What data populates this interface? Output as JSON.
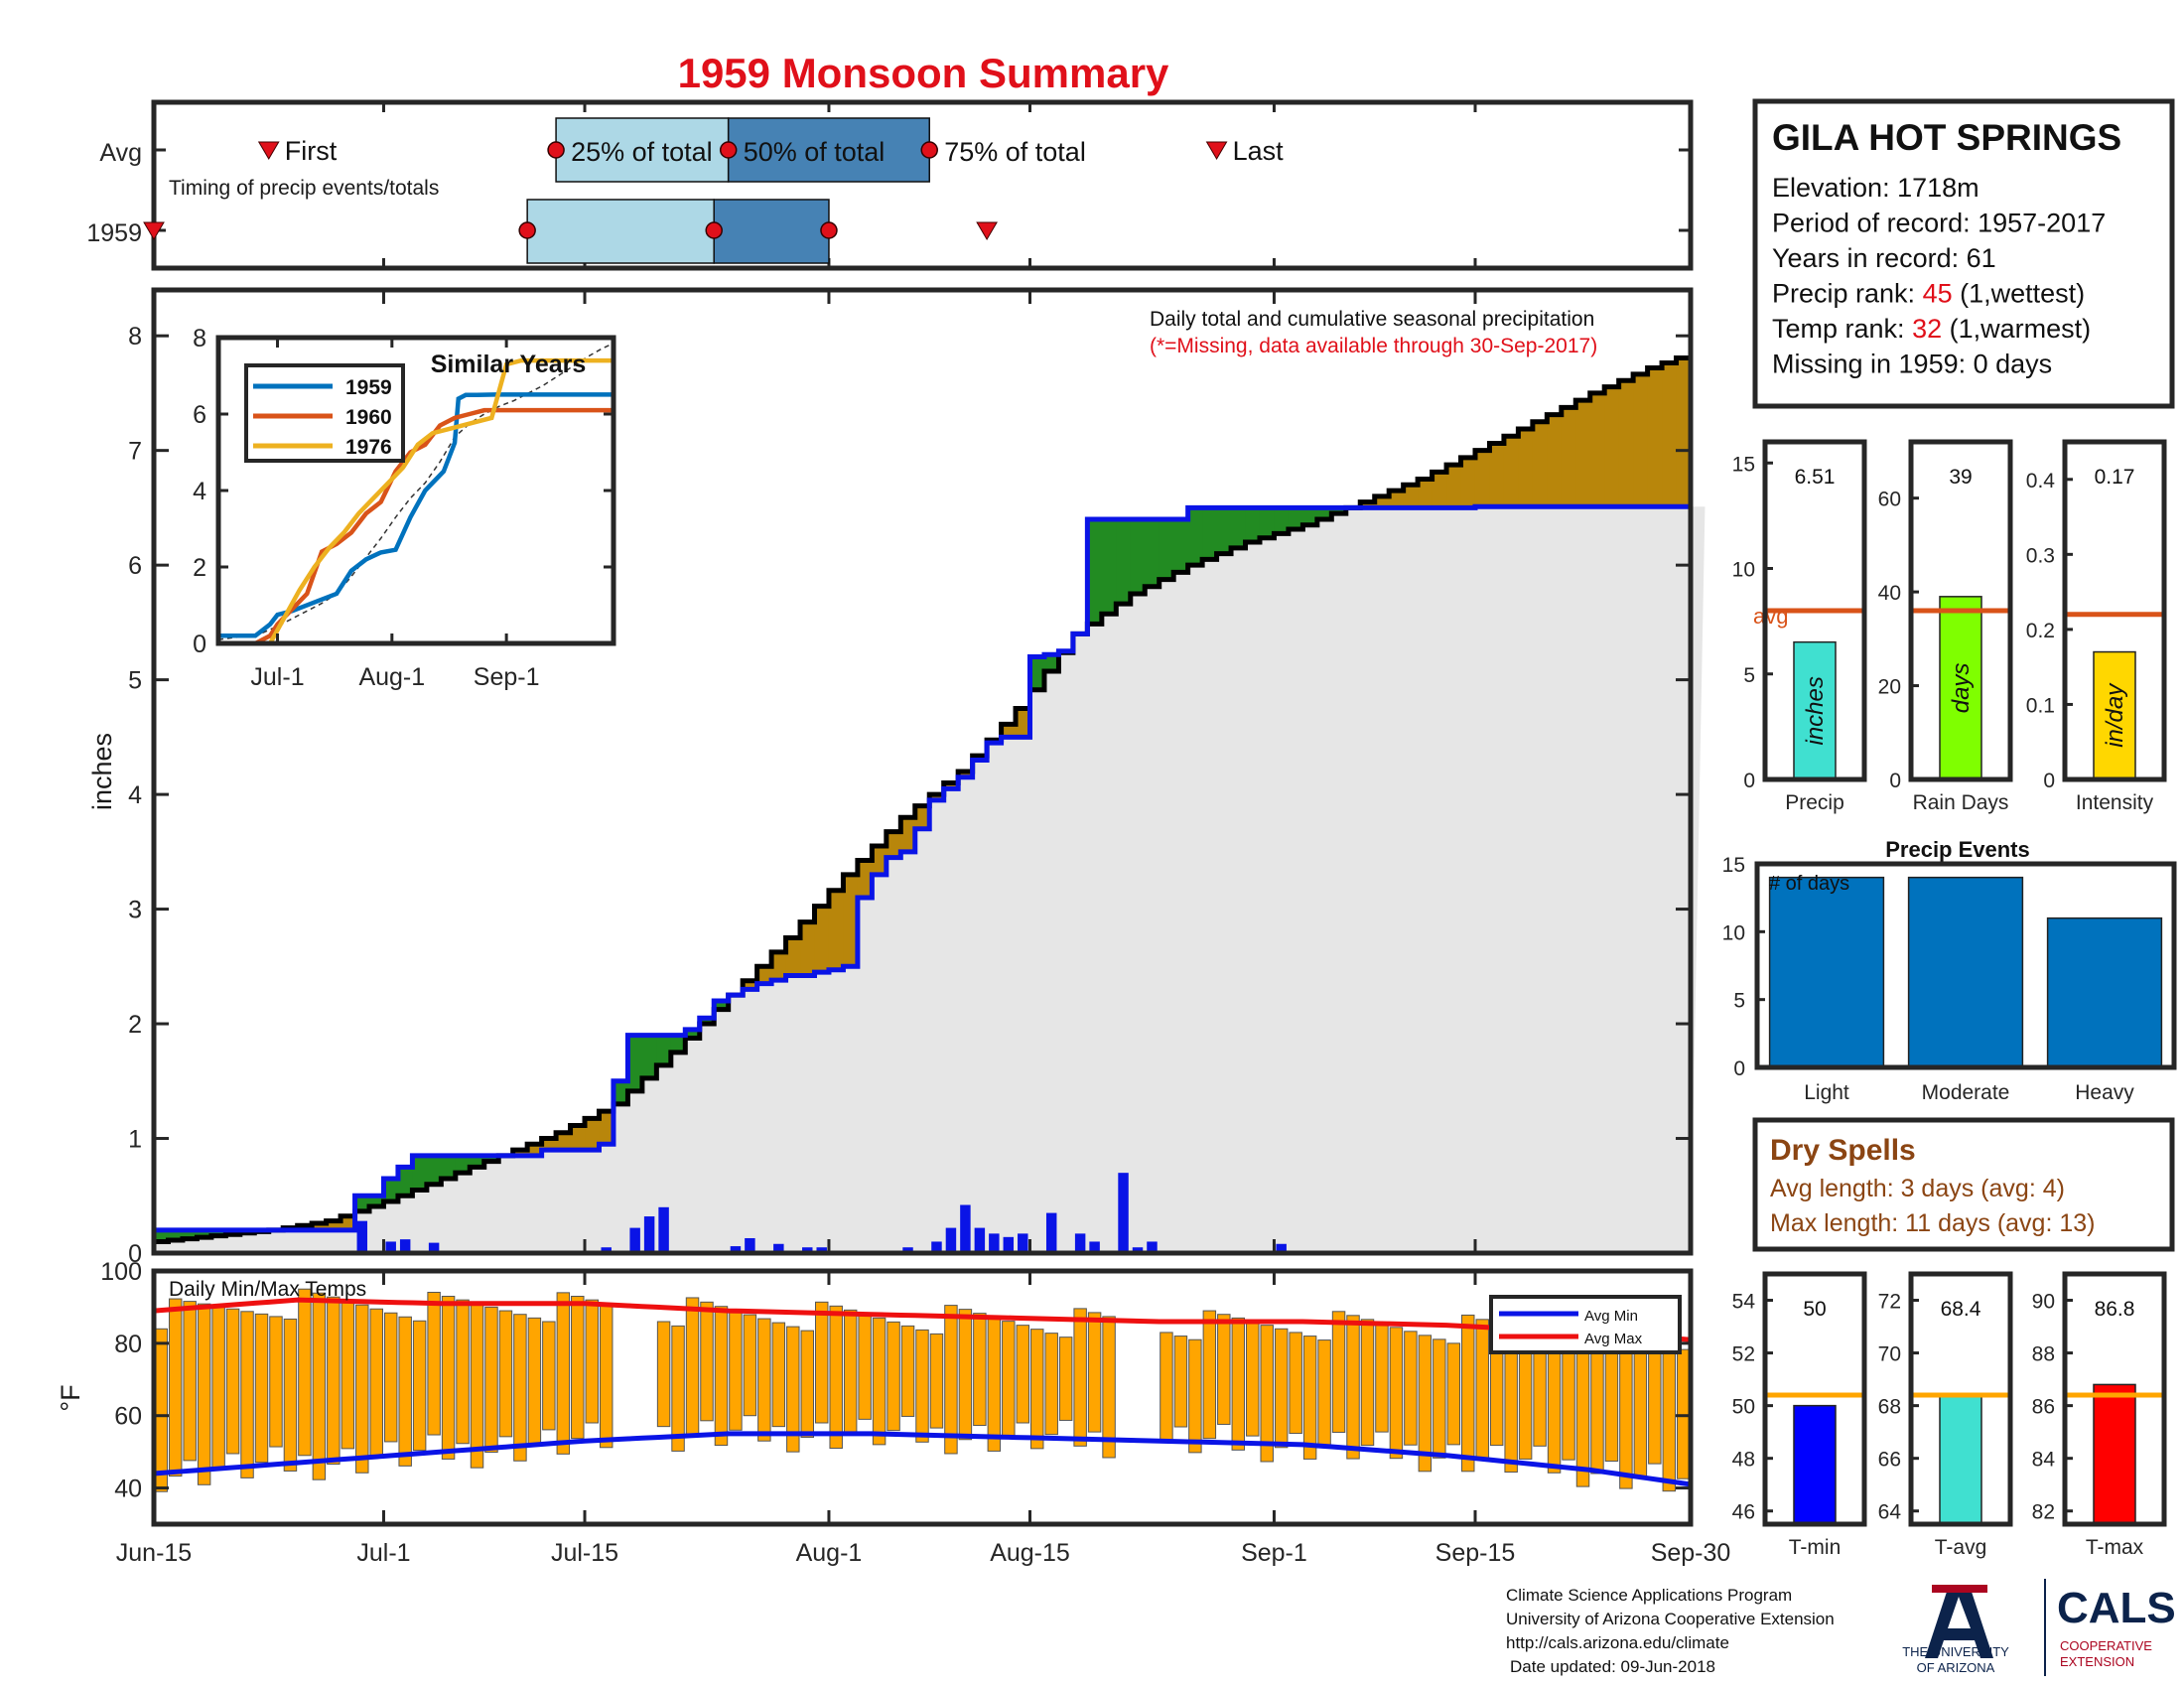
{
  "title": "1959 Monsoon Summary",
  "station": {
    "name": "GILA HOT SPRINGS",
    "lines": [
      {
        "pre": "Elevation: 1718m",
        "red": "",
        "post": ""
      },
      {
        "pre": "Period of record: 1957-2017",
        "red": "",
        "post": ""
      },
      {
        "pre": "Years in record: 61",
        "red": "",
        "post": ""
      },
      {
        "pre": "Precip rank: ",
        "red": "45",
        "post": " (1,wettest)"
      },
      {
        "pre": "Temp rank: ",
        "red": "32",
        "post": " (1,warmest)"
      },
      {
        "pre": "Missing in 1959: 0 days",
        "red": "",
        "post": ""
      }
    ]
  },
  "timing": {
    "row_labels": [
      "Avg",
      "1959"
    ],
    "caption": "Timing of precip events/totals",
    "avg": {
      "first": "First",
      "last": "Last",
      "p25": "25% of total",
      "p50": "50% of total",
      "p75": "75% of total"
    },
    "avg_days": {
      "first": 8,
      "p25": 28,
      "p50": 40,
      "p75": 54,
      "last": 74
    },
    "y1959_days": {
      "first": 0,
      "p25": 26,
      "p50": 39,
      "p75": 47,
      "last": 58
    }
  },
  "main": {
    "caption": "Daily total and cumulative seasonal precipitation",
    "missing_note": "(*=Missing, data available through 30-Sep-2017)",
    "ylabel": "inches",
    "yticks": [
      "0",
      "1",
      "2",
      "3",
      "4",
      "5",
      "6",
      "7",
      "8"
    ],
    "xticks": [
      {
        "label": "Jun-15",
        "day": 0
      },
      {
        "label": "Jul-1",
        "day": 16
      },
      {
        "label": "Jul-15",
        "day": 30
      },
      {
        "label": "Aug-1",
        "day": 47
      },
      {
        "label": "Aug-15",
        "day": 61
      },
      {
        "label": "Sep-1",
        "day": 78
      },
      {
        "label": "Sep-15",
        "day": 92
      },
      {
        "label": "Sep-30",
        "day": 107
      }
    ]
  },
  "inset": {
    "title": "Similar Years",
    "legend": [
      "1959",
      "1960",
      "1976"
    ],
    "yticks": [
      "0",
      "2",
      "4",
      "6",
      "8"
    ],
    "xticks": [
      "Jul-1",
      "Aug-1",
      "Sep-1"
    ]
  },
  "temps": {
    "label": "Daily Min/Max Temps",
    "ylabel": "°F",
    "yticks": [
      "40",
      "60",
      "80",
      "100"
    ],
    "legend": [
      "Avg Min",
      "Avg Max"
    ]
  },
  "stats": {
    "precip": {
      "value_text": "6.51",
      "inner": "inches",
      "avg_label": "avg",
      "xlabel": "Precip",
      "yticks": [
        "0",
        "5",
        "10",
        "15"
      ]
    },
    "raindays": {
      "value_text": "39",
      "inner": "days",
      "xlabel": "Rain Days",
      "yticks": [
        "0",
        "20",
        "40",
        "60"
      ]
    },
    "intensity": {
      "value_text": "0.17",
      "inner": "in/day",
      "xlabel": "Intensity",
      "yticks": [
        "0",
        "0.1",
        "0.2",
        "0.3",
        "0.4"
      ]
    }
  },
  "events": {
    "title": "Precip Events",
    "inner": "# of days",
    "yticks": [
      "0",
      "5",
      "10",
      "15"
    ]
  },
  "dry": {
    "title": "Dry Spells",
    "lines": [
      "Avg length: 3 days (avg: 4)",
      "Max length: 11 days (avg: 13)"
    ]
  },
  "temp_stats": {
    "tmin": {
      "value_text": "50",
      "xlabel": "T-min",
      "yticks": [
        "46",
        "48",
        "50",
        "52",
        "54"
      ]
    },
    "tavg": {
      "value_text": "68.4",
      "xlabel": "T-avg",
      "yticks": [
        "64",
        "66",
        "68",
        "70",
        "72"
      ]
    },
    "tmax": {
      "value_text": "86.8",
      "xlabel": "T-max",
      "yticks": [
        "82",
        "84",
        "86",
        "88",
        "90"
      ]
    }
  },
  "footer": {
    "lines": [
      "Climate Science Applications Program",
      "University of Arizona Cooperative Extension",
      "http://cals.arizona.edu/climate",
      "Date updated: 09-Jun-2018"
    ],
    "logo_ua_line1": "THE UNIVERSITY",
    "logo_ua_line2": "OF ARIZONA",
    "logo_cals": "CALS",
    "logo_coop1": "COOPERATIVE",
    "logo_coop2": "EXTENSION"
  },
  "colors": {
    "title_red": "#e0101a",
    "blue_line": "#0a14e6",
    "surplus_green": "#228b22",
    "deficit_brown": "#b8860b",
    "avg_black": "#000000",
    "bar_orange": "#ffa500",
    "avg_line_orange": "#d95319",
    "dry_brown": "#8b4513",
    "event_blue": "#0072bd",
    "precip_cyan": "#40e0d0",
    "raindays_green": "#7fff00",
    "intensity_yellow": "#ffd700",
    "tmin_blue": "#0000ff",
    "tavg_cyan": "#40e0d0",
    "tmax_red": "#ff0000",
    "temp_avg_line": "#ffa500",
    "ua_navy": "#0c234b",
    "ua_red": "#ab0520"
  },
  "chart_data": [
    {
      "type": "area",
      "title": "Daily total and cumulative seasonal precipitation",
      "ylabel": "inches",
      "ylim": [
        0,
        8.4
      ],
      "series": [
        {
          "name": "1959",
          "x": [
            0,
            1,
            2,
            3,
            4,
            5,
            6,
            7,
            8,
            9,
            10,
            11,
            12,
            13,
            14,
            15,
            16,
            17,
            18,
            19,
            20,
            21,
            22,
            23,
            24,
            25,
            26,
            27,
            28,
            29,
            30,
            31,
            32,
            33,
            34,
            35,
            36,
            37,
            38,
            39,
            40,
            41,
            42,
            43,
            44,
            45,
            46,
            47,
            48,
            49,
            50,
            51,
            52,
            53,
            54,
            55,
            56,
            57,
            58,
            59,
            60,
            61,
            62,
            63,
            64,
            65,
            66,
            67,
            68,
            69,
            70,
            71,
            72,
            73,
            74,
            75,
            76,
            77,
            78,
            79,
            80,
            81,
            82,
            83,
            84,
            85,
            86,
            87,
            88,
            89,
            90,
            91,
            92,
            93,
            94,
            95,
            96,
            97,
            98,
            99,
            100,
            101,
            102,
            103,
            104,
            105,
            106,
            107
          ],
          "y": [
            0.2,
            0.2,
            0.2,
            0.2,
            0.2,
            0.2,
            0.2,
            0.2,
            0.2,
            0.2,
            0.2,
            0.2,
            0.2,
            0.2,
            0.5,
            0.5,
            0.65,
            0.75,
            0.85,
            0.85,
            0.85,
            0.85,
            0.85,
            0.85,
            0.85,
            0.85,
            0.85,
            0.9,
            0.9,
            0.9,
            0.9,
            0.95,
            1.5,
            1.9,
            1.9,
            1.9,
            1.9,
            1.95,
            2.05,
            2.2,
            2.25,
            2.3,
            2.35,
            2.38,
            2.42,
            2.42,
            2.45,
            2.47,
            2.5,
            3.1,
            3.3,
            3.45,
            3.5,
            3.7,
            3.95,
            4.05,
            4.15,
            4.3,
            4.45,
            4.5,
            4.5,
            5.2,
            5.22,
            5.25,
            5.4,
            6.4,
            6.4,
            6.4,
            6.4,
            6.4,
            6.4,
            6.4,
            6.5,
            6.5,
            6.5,
            6.5,
            6.5,
            6.5,
            6.5,
            6.5,
            6.5,
            6.5,
            6.5,
            6.5,
            6.5,
            6.5,
            6.5,
            6.5,
            6.5,
            6.5,
            6.5,
            6.5,
            6.51,
            6.51,
            6.51,
            6.51,
            6.51,
            6.51,
            6.51,
            6.51,
            6.51,
            6.51,
            6.51,
            6.51,
            6.51,
            6.51,
            6.51,
            6.51
          ]
        },
        {
          "name": "Average",
          "x": [
            0,
            4,
            8,
            12,
            16,
            20,
            24,
            28,
            32,
            36,
            40,
            44,
            48,
            52,
            56,
            60,
            64,
            68,
            72,
            76,
            80,
            84,
            88,
            92,
            96,
            100,
            104,
            107
          ],
          "y": [
            0.1,
            0.15,
            0.2,
            0.28,
            0.45,
            0.65,
            0.85,
            1.05,
            1.3,
            1.75,
            2.25,
            2.75,
            3.3,
            3.8,
            4.2,
            4.75,
            5.4,
            5.75,
            6.0,
            6.2,
            6.35,
            6.55,
            6.75,
            7.0,
            7.25,
            7.5,
            7.72,
            7.85
          ]
        }
      ],
      "bars": {
        "name": "Daily precip",
        "days": [
          14,
          16,
          17,
          19,
          31,
          33,
          34,
          35,
          40,
          41,
          43,
          45,
          46,
          52,
          53,
          54,
          55,
          56,
          57,
          58,
          59,
          60,
          62,
          64,
          65,
          67,
          68,
          69,
          78
        ],
        "values": [
          0.28,
          0.1,
          0.12,
          0.09,
          0.05,
          0.22,
          0.32,
          0.4,
          0.06,
          0.13,
          0.08,
          0.05,
          0.05,
          0.05,
          0.02,
          0.1,
          0.22,
          0.42,
          0.22,
          0.17,
          0.14,
          0.17,
          0.35,
          0.17,
          0.1,
          0.7,
          0.05,
          0.1,
          0.08
        ]
      }
    },
    {
      "type": "line",
      "title": "Similar Years",
      "ylim": [
        0,
        8
      ],
      "xlim": [
        0,
        107
      ],
      "series": [
        {
          "name": "1959",
          "x": [
            0,
            10,
            14,
            16,
            20,
            32,
            36,
            40,
            44,
            48,
            52,
            56,
            61,
            64,
            65,
            67,
            70,
            75,
            107
          ],
          "y": [
            0.2,
            0.2,
            0.5,
            0.75,
            0.85,
            1.3,
            1.9,
            2.2,
            2.38,
            2.45,
            3.3,
            4.0,
            4.5,
            5.25,
            6.4,
            6.5,
            6.5,
            6.51,
            6.51
          ]
        },
        {
          "name": "1960",
          "x": [
            0,
            10,
            14,
            16,
            20,
            24,
            28,
            32,
            36,
            40,
            44,
            48,
            52,
            56,
            60,
            64,
            68,
            72,
            76,
            80,
            107
          ],
          "y": [
            0.0,
            0.0,
            0.2,
            0.5,
            0.9,
            1.3,
            2.4,
            2.6,
            2.9,
            3.4,
            3.7,
            4.5,
            5.0,
            5.2,
            5.7,
            5.9,
            6.0,
            6.1,
            6.1,
            6.1,
            6.1
          ]
        },
        {
          "name": "1976",
          "x": [
            0,
            10,
            14,
            18,
            22,
            26,
            30,
            34,
            38,
            42,
            46,
            50,
            54,
            58,
            62,
            66,
            70,
            74,
            78,
            82,
            107
          ],
          "y": [
            0.0,
            0.0,
            0.0,
            0.7,
            1.4,
            2.0,
            2.5,
            2.9,
            3.4,
            3.8,
            4.2,
            4.6,
            5.2,
            5.5,
            5.6,
            5.7,
            5.8,
            5.9,
            7.3,
            7.4,
            7.4
          ]
        }
      ]
    },
    {
      "type": "bar",
      "title": "Daily Min/Max Temps",
      "ylabel": "°F",
      "ylim": [
        30,
        100
      ],
      "series": [
        {
          "name": "Avg Min",
          "x": [
            0,
            10,
            20,
            30,
            40,
            50,
            60,
            70,
            80,
            90,
            100,
            107
          ],
          "y": [
            44,
            47,
            50,
            53,
            55,
            55,
            54,
            53,
            52,
            49,
            45,
            41
          ]
        },
        {
          "name": "Avg Max",
          "x": [
            0,
            10,
            20,
            30,
            40,
            50,
            60,
            70,
            80,
            90,
            100,
            107
          ],
          "y": [
            89,
            92,
            91,
            91,
            89,
            88,
            87,
            86,
            86,
            85,
            83,
            81
          ]
        }
      ],
      "note": "Daily orange bars span daily min to max temperature; gaps on days 32-34 and 67-69."
    },
    {
      "type": "bar",
      "categories": [
        "Precip"
      ],
      "values": [
        6.51
      ],
      "avg": 8.0,
      "ylim": [
        0,
        16
      ]
    },
    {
      "type": "bar",
      "categories": [
        "Rain Days"
      ],
      "values": [
        39
      ],
      "avg": 36,
      "ylim": [
        0,
        72
      ]
    },
    {
      "type": "bar",
      "categories": [
        "Intensity"
      ],
      "values": [
        0.17
      ],
      "avg": 0.22,
      "ylim": [
        0,
        0.45
      ]
    },
    {
      "type": "bar",
      "title": "Precip Events",
      "categories": [
        "Light",
        "Moderate",
        "Heavy"
      ],
      "values": [
        14,
        14,
        11
      ],
      "ylim": [
        0,
        15
      ]
    },
    {
      "type": "bar",
      "categories": [
        "T-min"
      ],
      "values": [
        50
      ],
      "avg": 50.4,
      "ylim": [
        45.5,
        55
      ]
    },
    {
      "type": "bar",
      "categories": [
        "T-avg"
      ],
      "values": [
        68.4
      ],
      "avg": 68.4,
      "ylim": [
        63.5,
        73
      ]
    },
    {
      "type": "bar",
      "categories": [
        "T-max"
      ],
      "values": [
        86.8
      ],
      "avg": 86.4,
      "ylim": [
        81.5,
        91
      ]
    }
  ]
}
